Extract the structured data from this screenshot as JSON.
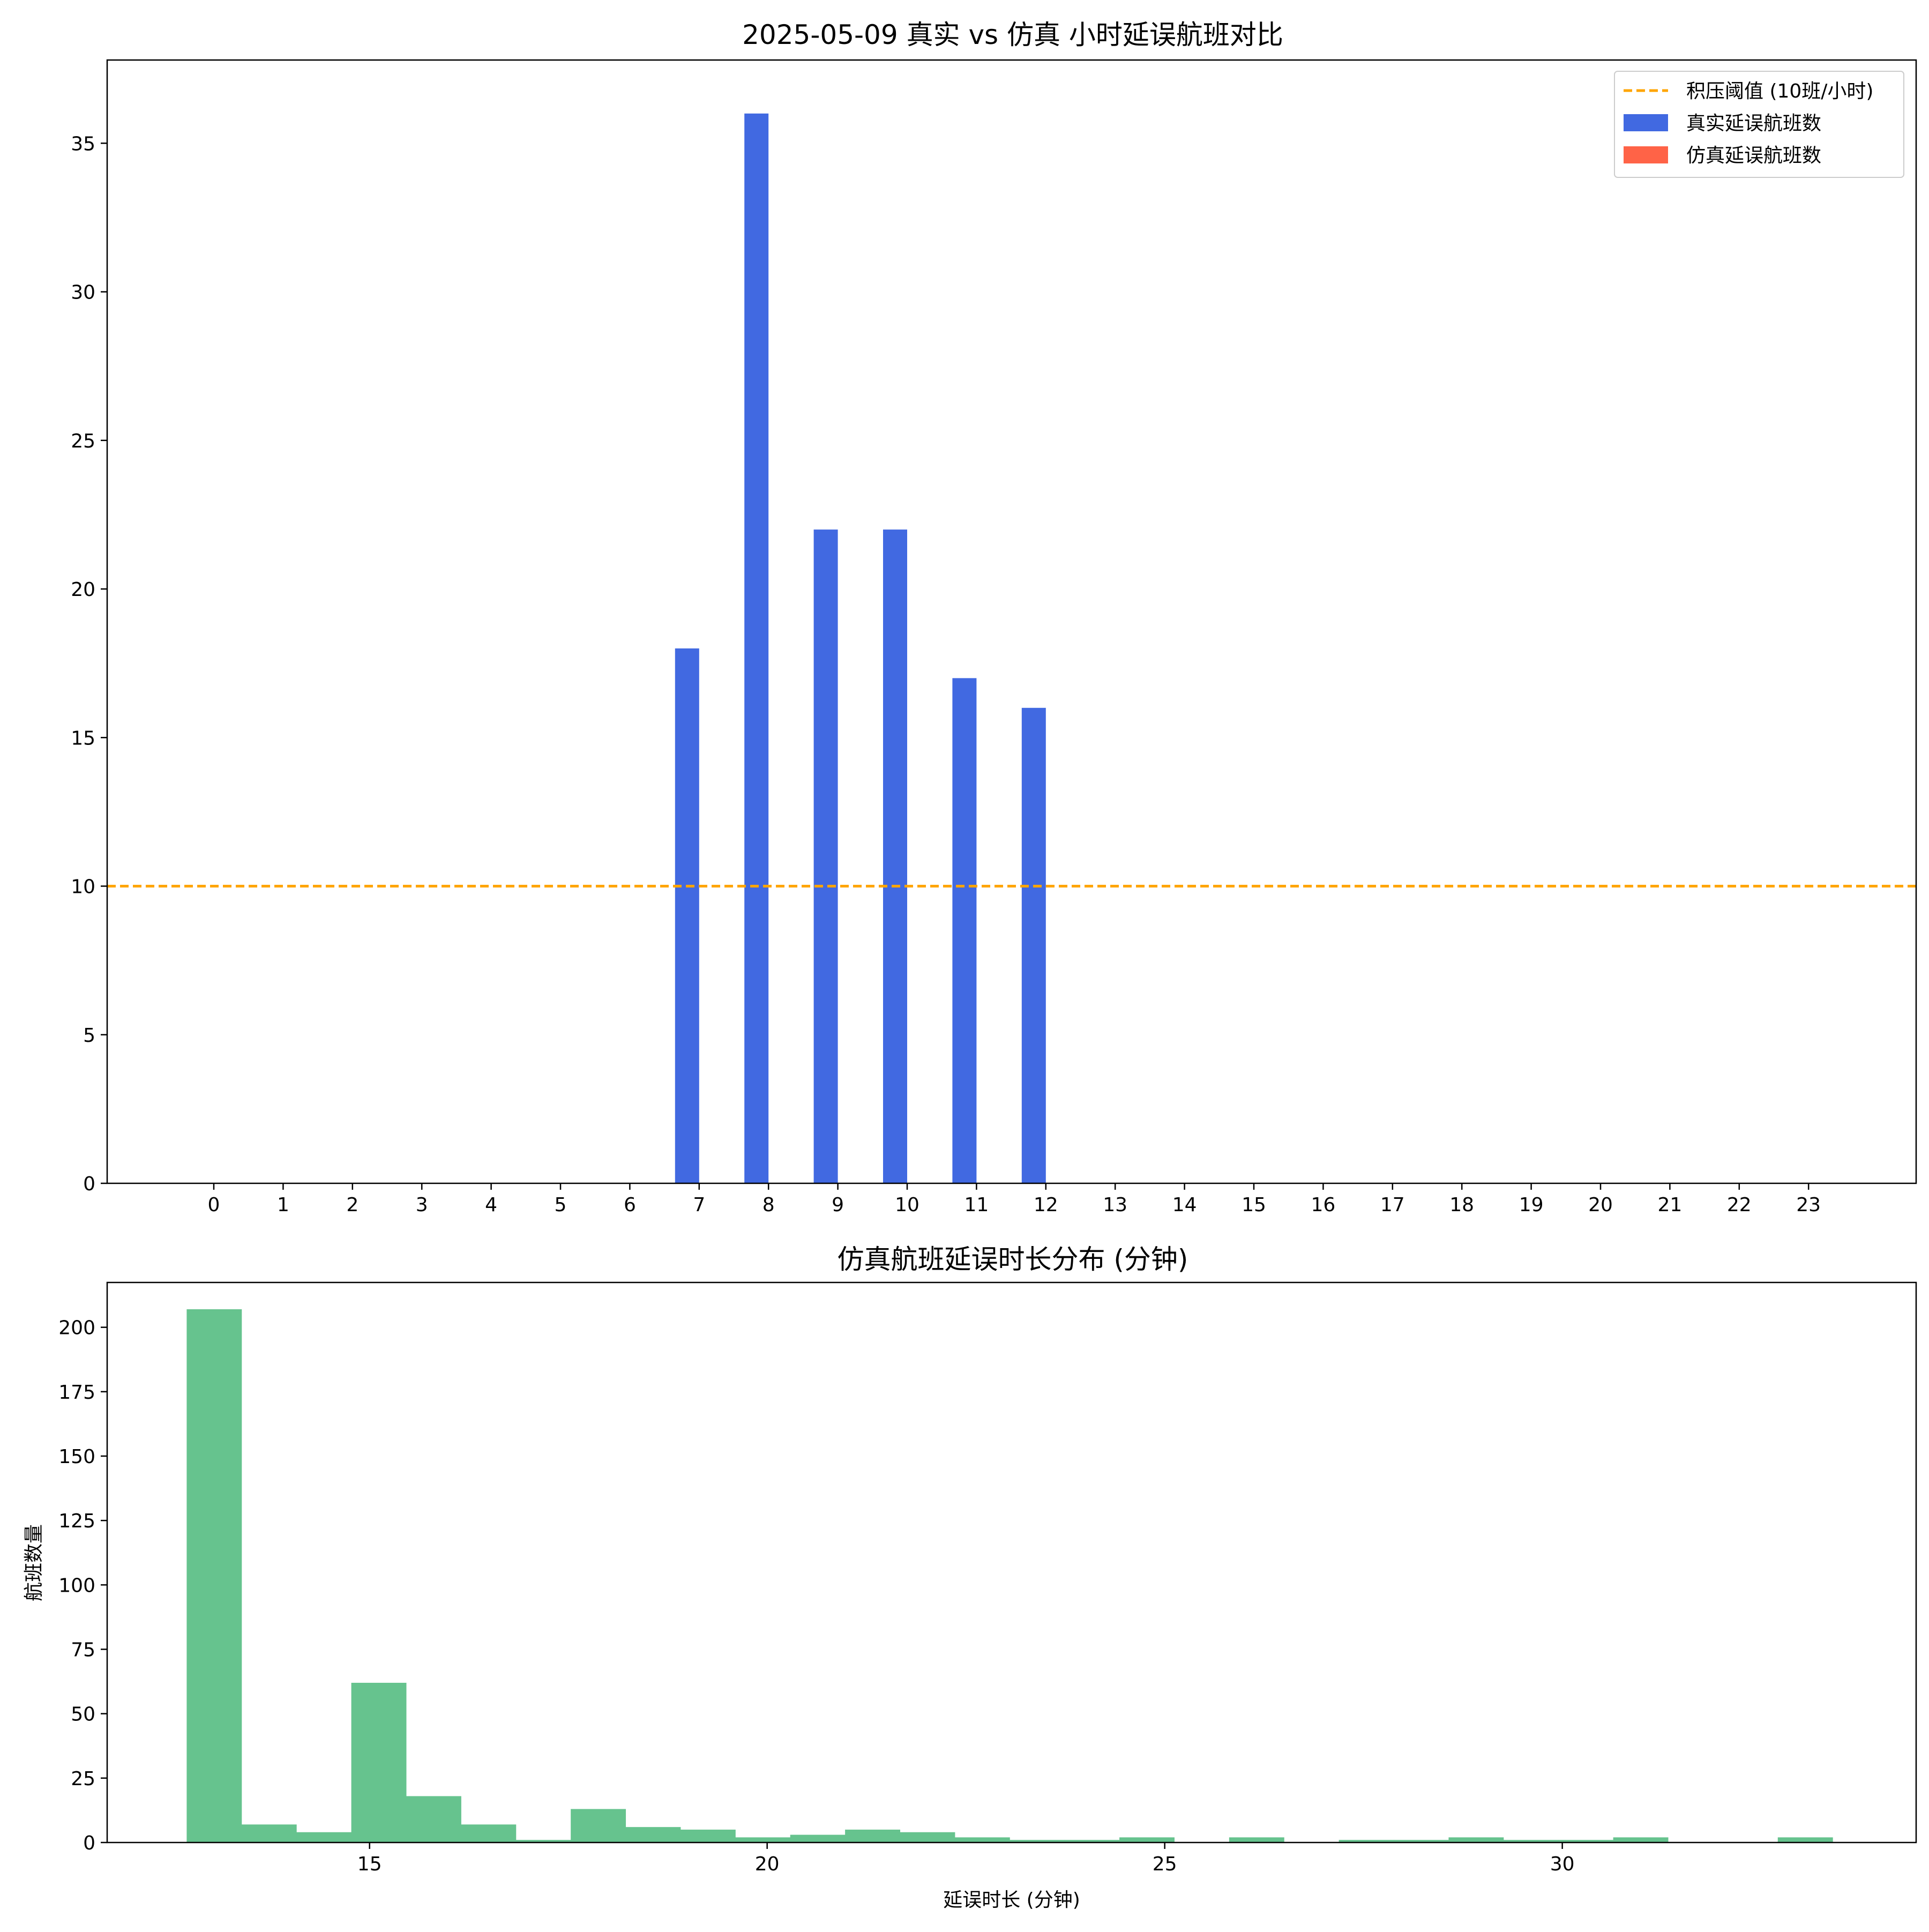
{
  "colors": {
    "real": "#4169E1",
    "sim": "#FF6347",
    "threshold": "#FFA500",
    "hist": "#66C38E",
    "axis": "#000000"
  },
  "chart_data": [
    {
      "type": "bar",
      "title": "2025-05-09 真实 vs 仿真 小时延误航班对比",
      "xlabel": "",
      "ylabel": "",
      "categories": [
        "0",
        "1",
        "2",
        "3",
        "4",
        "5",
        "6",
        "7",
        "8",
        "9",
        "10",
        "11",
        "12",
        "13",
        "14",
        "15",
        "16",
        "17",
        "18",
        "19",
        "20",
        "21",
        "22",
        "23"
      ],
      "series": [
        {
          "name": "真实延误航班数",
          "color": "#4169E1",
          "values": [
            0,
            0,
            0,
            0,
            0,
            0,
            0,
            18,
            36,
            22,
            22,
            17,
            16,
            0,
            0,
            0,
            0,
            0,
            0,
            0,
            0,
            0,
            0,
            0
          ]
        },
        {
          "name": "仿真延误航班数",
          "color": "#FF6347",
          "values": [
            0,
            0,
            0,
            0,
            0,
            0,
            0,
            0,
            0,
            0,
            0,
            0,
            0,
            0,
            0,
            0,
            0,
            0,
            0,
            0,
            0,
            0,
            0,
            0
          ]
        }
      ],
      "threshold": {
        "name": "积压阈值 (10班/小时)",
        "value": 10,
        "color": "#FFA500",
        "style": "dashed"
      },
      "ylim": [
        0,
        37.8
      ],
      "yticks": [
        0,
        5,
        10,
        15,
        20,
        25,
        30,
        35
      ],
      "legend": "top-right",
      "grid": false
    },
    {
      "type": "histogram",
      "title": "仿真航班延误时长分布 (分钟)",
      "xlabel": "延误时长 (分钟)",
      "ylabel": "航班数量",
      "color": "#66C38E",
      "bin_start": 12.7,
      "bin_width": 0.69,
      "counts": [
        207,
        7,
        4,
        62,
        18,
        7,
        1,
        13,
        6,
        5,
        2,
        3,
        5,
        4,
        2,
        1,
        1,
        2,
        0,
        2,
        0,
        1,
        1,
        2,
        1,
        1,
        2,
        0,
        0,
        2
      ],
      "xlim": [
        11.7,
        34.45
      ],
      "ylim": [
        0,
        217.4
      ],
      "xticks": [
        15,
        20,
        25,
        30
      ],
      "yticks": [
        0,
        25,
        50,
        75,
        100,
        125,
        150,
        175,
        200
      ],
      "grid": false
    }
  ]
}
